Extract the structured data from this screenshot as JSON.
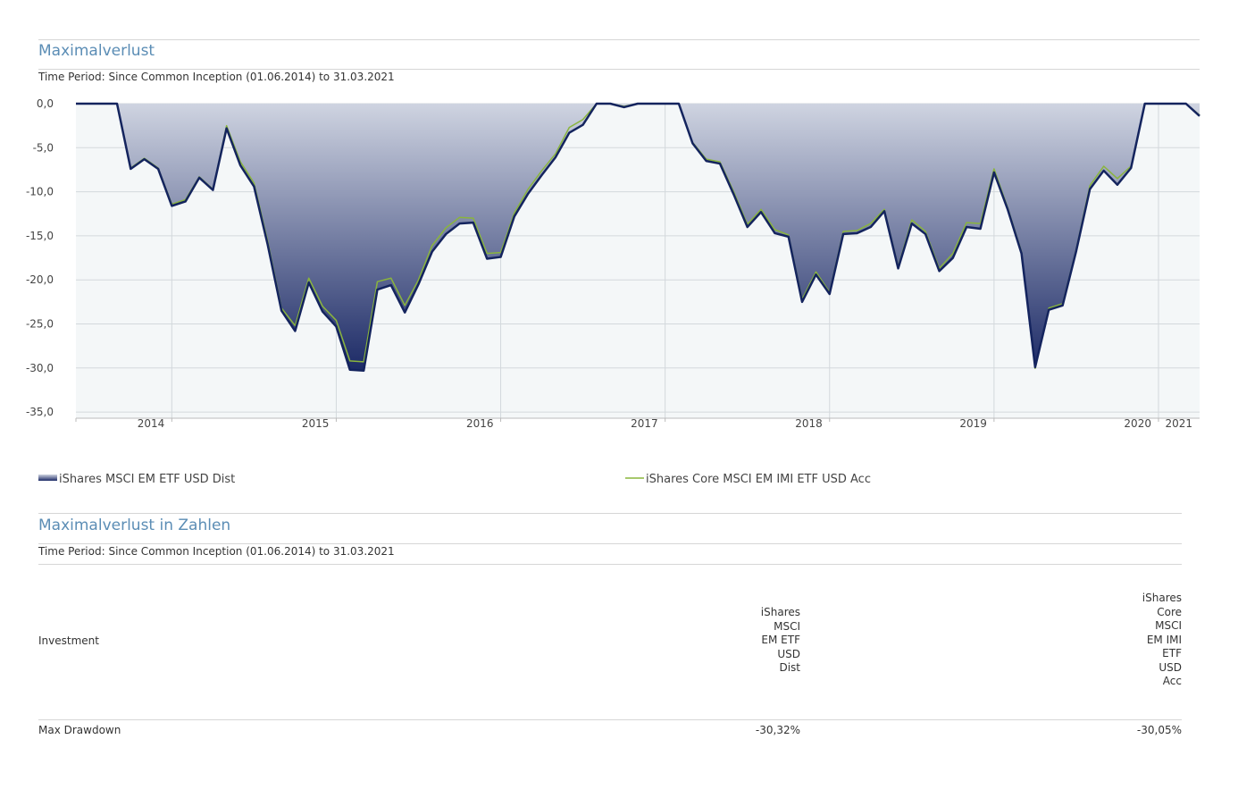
{
  "header": {
    "title": "Maximalverlust",
    "subtitle": "Time Period: Since Common Inception (01.06.2014) to 31.03.2021"
  },
  "chart_data": {
    "type": "area",
    "x": [
      2014.417,
      2014.5,
      2014.583,
      2014.667,
      2014.75,
      2014.833,
      2014.917,
      2015,
      2015.083,
      2015.167,
      2015.25,
      2015.333,
      2015.417,
      2015.5,
      2015.583,
      2015.667,
      2015.75,
      2015.833,
      2015.917,
      2016,
      2016.083,
      2016.167,
      2016.25,
      2016.333,
      2016.417,
      2016.5,
      2016.583,
      2016.667,
      2016.75,
      2016.833,
      2016.917,
      2017,
      2017.083,
      2017.167,
      2017.25,
      2017.333,
      2017.417,
      2017.5,
      2017.583,
      2017.667,
      2017.75,
      2017.833,
      2017.917,
      2018,
      2018.083,
      2018.167,
      2018.25,
      2018.333,
      2018.417,
      2018.5,
      2018.583,
      2018.667,
      2018.75,
      2018.833,
      2018.917,
      2019,
      2019.083,
      2019.167,
      2019.25,
      2019.333,
      2019.417,
      2019.5,
      2019.583,
      2019.667,
      2019.75,
      2019.833,
      2019.917,
      2020,
      2020.083,
      2020.167,
      2020.25,
      2020.333,
      2020.417,
      2020.5,
      2020.583,
      2020.667,
      2020.75,
      2020.833,
      2020.917,
      2021,
      2021.083,
      2021.167,
      2021.25
    ],
    "series": [
      {
        "name": "iShares MSCI EM ETF USD Dist",
        "color": "#14245e",
        "values": [
          0,
          0,
          0,
          0,
          -7.4,
          -6.3,
          -7.4,
          -11.6,
          -11.1,
          -8.4,
          -9.8,
          -2.8,
          -7,
          -9.4,
          -16,
          -23.5,
          -25.8,
          -20.3,
          -23.6,
          -25.3,
          -30.2,
          -30.3,
          -21.1,
          -20.6,
          -23.7,
          -20.5,
          -16.8,
          -14.8,
          -13.6,
          -13.5,
          -17.6,
          -17.4,
          -12.8,
          -10.2,
          -8.1,
          -6.1,
          -3.3,
          -2.4,
          0,
          0,
          -0.4,
          0,
          0,
          0,
          0,
          -4.5,
          -6.5,
          -6.8,
          -10.3,
          -14,
          -12.3,
          -14.7,
          -15.1,
          -22.5,
          -19.4,
          -21.6,
          -14.8,
          -14.7,
          -14,
          -12.2,
          -18.7,
          -13.6,
          -14.8,
          -19,
          -17.5,
          -14,
          -14.2,
          -7.8,
          -12,
          -17,
          -29.9,
          -23.4,
          -22.9,
          -16.7,
          -9.7,
          -7.6,
          -9.2,
          -7.3,
          0,
          0,
          0,
          0,
          -1.4
        ]
      },
      {
        "name": "iShares Core MSCI EM IMI ETF USD Acc",
        "color": "#8ab53c",
        "values": [
          0,
          0,
          0,
          0,
          -7.3,
          -6.2,
          -7.3,
          -11.4,
          -10.9,
          -8.3,
          -9.7,
          -2.5,
          -6.6,
          -9,
          -15.6,
          -23.2,
          -25.2,
          -19.8,
          -23,
          -24.6,
          -29.2,
          -29.3,
          -20.2,
          -19.8,
          -22.9,
          -20,
          -16.1,
          -14.1,
          -12.9,
          -13,
          -17,
          -16.9,
          -12.4,
          -9.7,
          -7.6,
          -5.7,
          -2.7,
          -1.8,
          0,
          0,
          -0.3,
          0,
          0,
          0,
          0,
          -4.4,
          -6.3,
          -6.6,
          -10,
          -13.7,
          -12,
          -14.3,
          -14.9,
          -22.2,
          -19.1,
          -21.4,
          -14.5,
          -14.4,
          -13.6,
          -12,
          -18.5,
          -13.2,
          -14.5,
          -18.7,
          -17,
          -13.5,
          -13.6,
          -7.4,
          -11.8,
          -16.8,
          -30.05,
          -23.2,
          -22.7,
          -16.5,
          -9.3,
          -7.1,
          -8.5,
          -7.1,
          0,
          0,
          0,
          0,
          -1.3
        ]
      }
    ],
    "xlim": [
      2014.417,
      2021.25
    ],
    "xticks": [
      2014,
      2015,
      2016,
      2017,
      2018,
      2019,
      2020,
      2021
    ],
    "ylim": [
      -35.7,
      0
    ],
    "yticks": [
      {
        "value": 0,
        "label": "0,0"
      },
      {
        "value": -5,
        "label": "-5,0"
      },
      {
        "value": -10,
        "label": "-10,0"
      },
      {
        "value": -15,
        "label": "-15,0"
      },
      {
        "value": -20,
        "label": "-20,0"
      },
      {
        "value": -25,
        "label": "-25,0"
      },
      {
        "value": -30,
        "label": "-30,0"
      },
      {
        "value": -35,
        "label": "-35,0"
      }
    ],
    "grid": true
  },
  "table": {
    "title": "Maximalverlust in Zahlen",
    "subtitle": "Time Period: Since Common Inception (01.06.2014) to 31.03.2021",
    "columns": [
      "Investment",
      "iShares MSCI EM ETF USD Dist",
      "iShares Core MSCI EM IMI ETF USD Acc"
    ],
    "rows": [
      [
        "Max Drawdown",
        "-30,32%",
        "-30,05%"
      ]
    ]
  }
}
